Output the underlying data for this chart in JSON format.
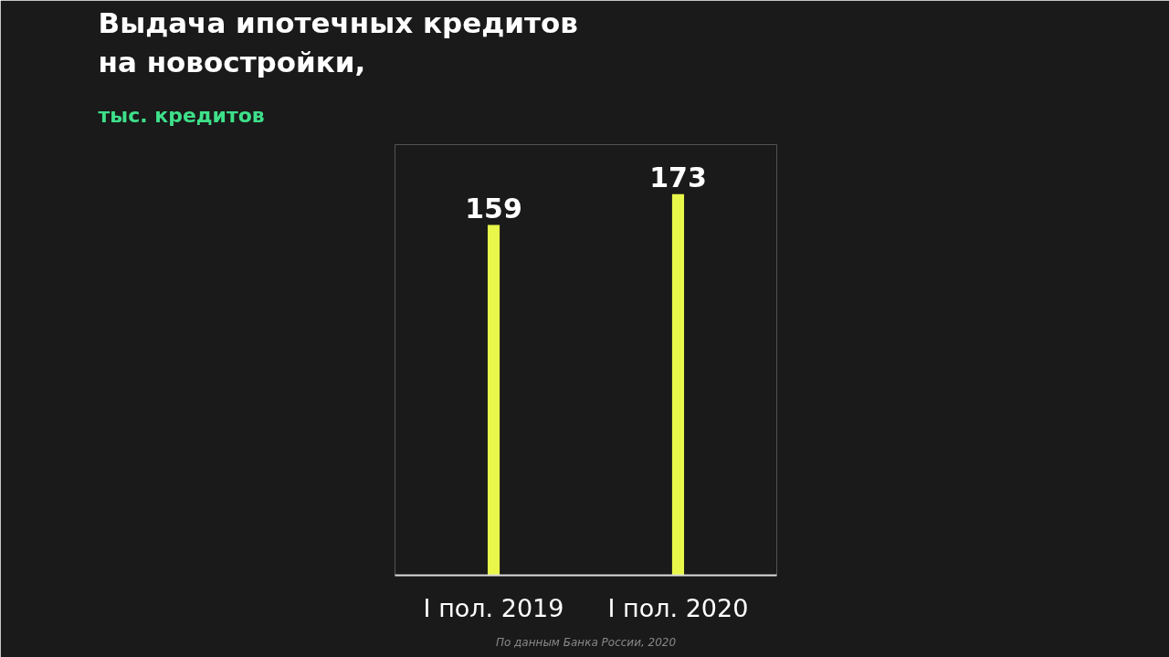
{
  "chart_data": {
    "type": "bar",
    "title": "Выдача ипотечных кредитов\nна новостройки,",
    "subtitle": "тыс. кредитов",
    "categories": [
      "I пол. 2019",
      "I пол. 2020"
    ],
    "values": [
      159,
      173
    ],
    "color": "#e8f74a",
    "data_labels": true,
    "grid": false,
    "annotations": [
      "По данным Банка России, 2020"
    ]
  }
}
